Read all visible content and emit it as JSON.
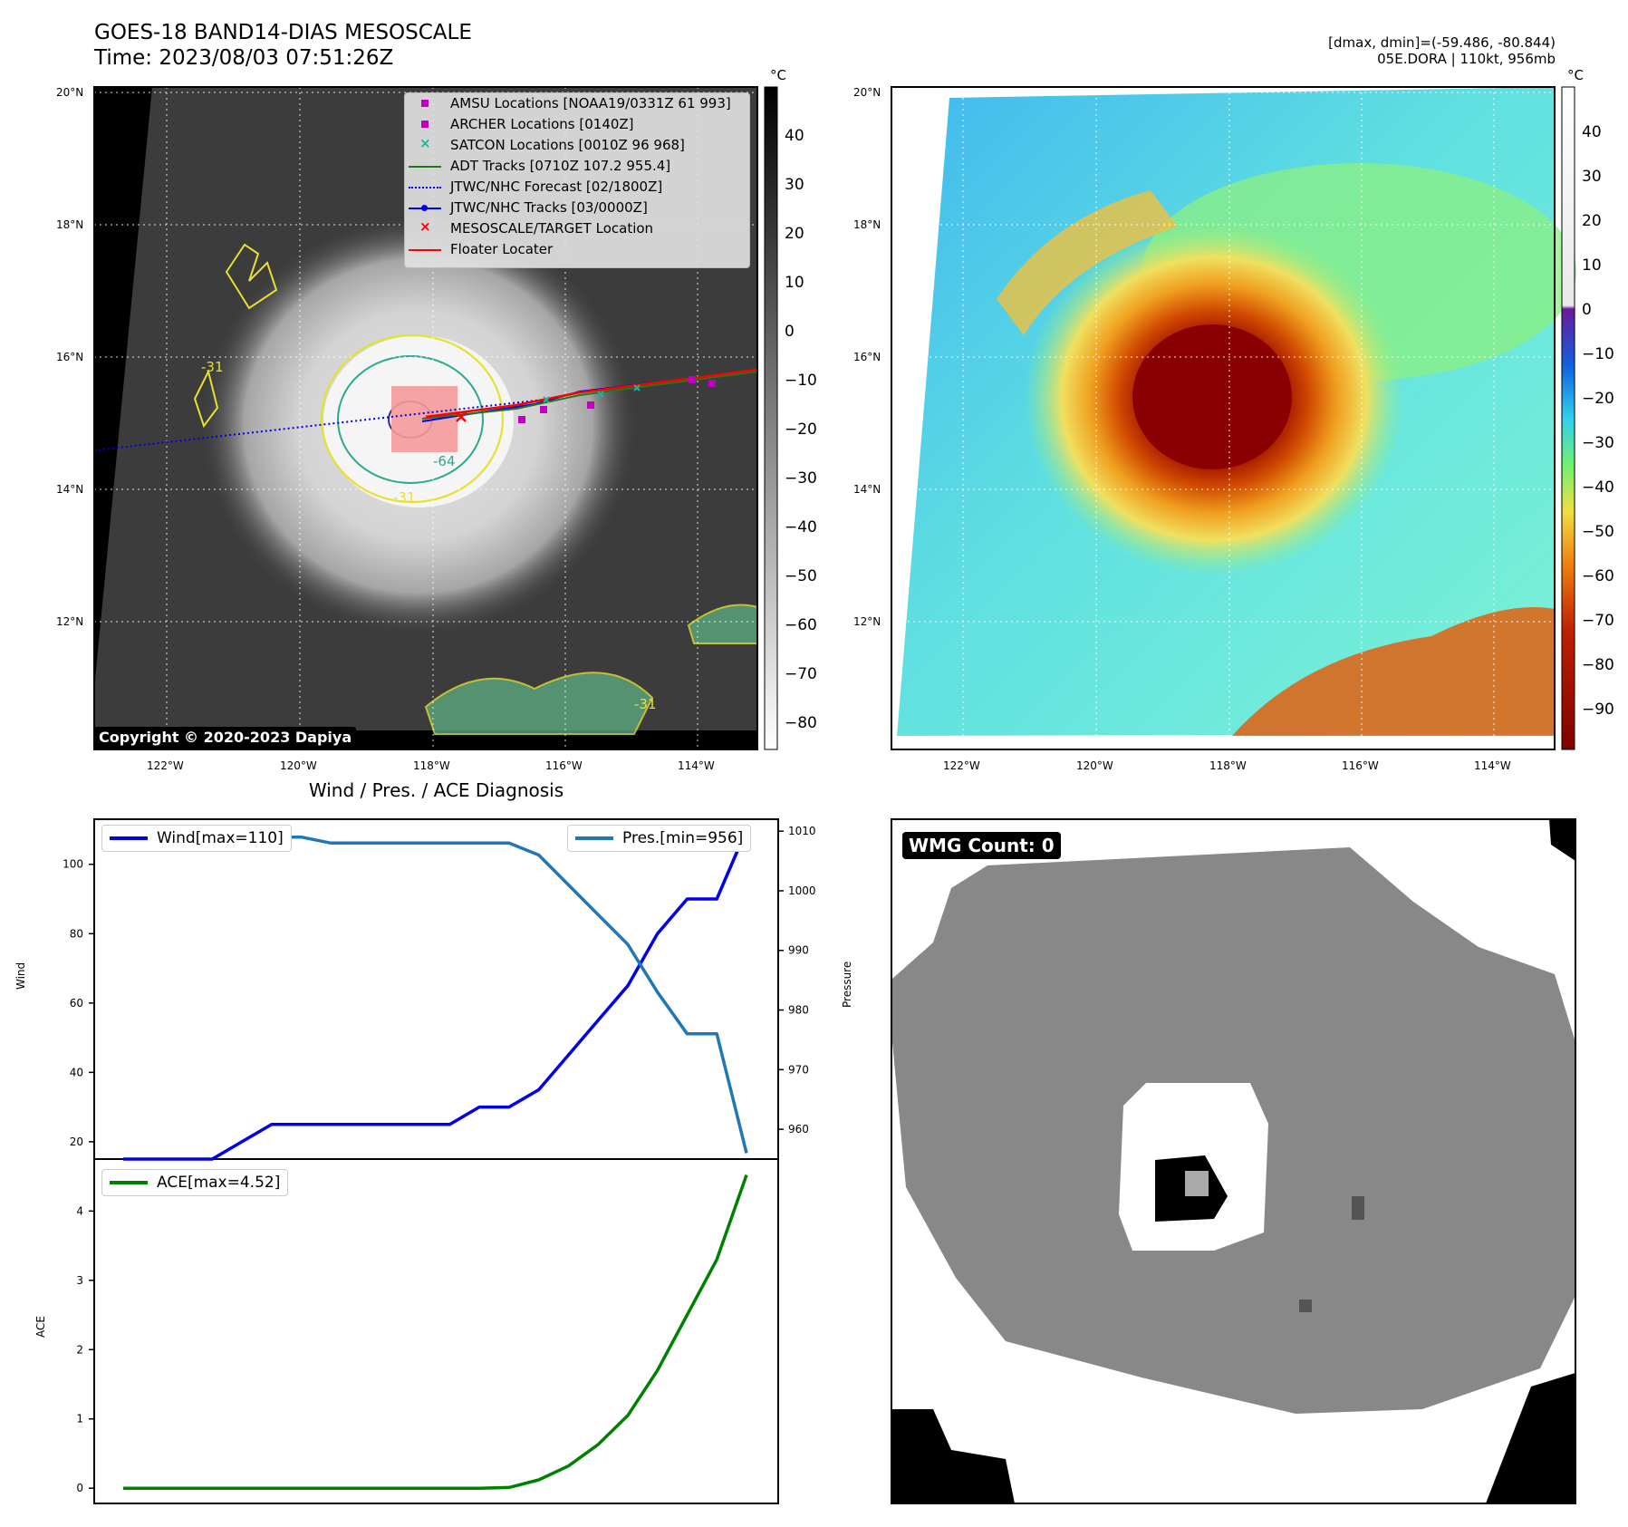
{
  "header": {
    "title_line1": "GOES-18 BAND14-DIAS MESOSCALE",
    "title_line2": "Time: 2023/08/03 07:51:26Z",
    "dmax_dmin": "[dmax, dmin]=(-59.486, -80.844)",
    "storm_info": "05E.DORA | 110kt, 956mb"
  },
  "map_axes": {
    "lat_labels": [
      "20°N",
      "18°N",
      "16°N",
      "14°N",
      "12°N"
    ],
    "lon_labels": [
      "122°W",
      "120°W",
      "118°W",
      "116°W",
      "114°W"
    ]
  },
  "colorbar_gray": {
    "unit": "°C",
    "ticks": [
      "40",
      "30",
      "20",
      "10",
      "0",
      "−10",
      "−20",
      "−30",
      "−40",
      "−50",
      "−60",
      "−70",
      "−80"
    ]
  },
  "colorbar_color": {
    "unit": "°C",
    "ticks": [
      "40",
      "30",
      "20",
      "10",
      "0",
      "−10",
      "−20",
      "−30",
      "−40",
      "−50",
      "−60",
      "−70",
      "−80",
      "−90"
    ]
  },
  "map_legend": [
    {
      "label": "AMSU Locations [NOAA19/0331Z 61 993]",
      "marker": "square",
      "color": "#c000c0"
    },
    {
      "label": "ARCHER Locations [0140Z]",
      "marker": "square",
      "color": "#c000c0"
    },
    {
      "label": "SATCON Locations [0010Z 96 968]",
      "marker": "x",
      "color": "#20b0a0"
    },
    {
      "label": "ADT Tracks [0710Z 107.2 955.4]",
      "marker": "line",
      "color": "#1a7a1a"
    },
    {
      "label": "JTWC/NHC Forecast [02/1800Z]",
      "marker": "dotted",
      "color": "#0000ee"
    },
    {
      "label": "JTWC/NHC Tracks [03/0000Z]",
      "marker": "line-dot",
      "color": "#0000ee"
    },
    {
      "label": "MESOSCALE/TARGET Location",
      "marker": "x",
      "color": "#ff0000"
    },
    {
      "label": "Floater Locater",
      "marker": "line",
      "color": "#ff0000"
    }
  ],
  "contour_labels": [
    "-31",
    "-64",
    "-31",
    "-31"
  ],
  "copyright": "Copyright © 2020-2023 Dapiya",
  "wmg_count": "WMG Count: 0",
  "chart_data": [
    {
      "type": "line",
      "title": "Wind / Pres. / ACE Diagnosis",
      "ylabel": "Wind",
      "ylabel_right": "Pressure",
      "ylim": [
        15,
        113
      ],
      "ylim_right": [
        955,
        1012
      ],
      "yticks": [
        20,
        40,
        60,
        80,
        100
      ],
      "yticks_right": [
        960,
        970,
        980,
        990,
        1000,
        1010
      ],
      "x": [
        0,
        1,
        2,
        3,
        4,
        5,
        6,
        7,
        8,
        9,
        10,
        11,
        12,
        13,
        14,
        15,
        16,
        17,
        18,
        19,
        20,
        21
      ],
      "series": [
        {
          "name": "Wind[max=110]",
          "color": "#0000ee",
          "axis": "left",
          "values": [
            15,
            15,
            15,
            15,
            20,
            25,
            25,
            25,
            25,
            25,
            25,
            25,
            30,
            30,
            35,
            45,
            55,
            65,
            80,
            90,
            90,
            110
          ]
        },
        {
          "name": "Pres.[min=956]",
          "color": "#1f77b4",
          "axis": "right",
          "values": [
            1010,
            1010,
            1010,
            1010,
            1009,
            1009,
            1009,
            1008,
            1008,
            1008,
            1008,
            1008,
            1008,
            1008,
            1006,
            1001,
            996,
            991,
            983,
            976,
            976,
            956
          ]
        }
      ]
    },
    {
      "type": "line",
      "ylabel": "ACE",
      "ylim": [
        -0.22,
        4.75
      ],
      "yticks": [
        0,
        1,
        2,
        3,
        4
      ],
      "x": [
        0,
        1,
        2,
        3,
        4,
        5,
        6,
        7,
        8,
        9,
        10,
        11,
        12,
        13,
        14,
        15,
        16,
        17,
        18,
        19,
        20,
        21
      ],
      "series": [
        {
          "name": "ACE[max=4.52]",
          "color": "#008000",
          "values": [
            0,
            0,
            0,
            0,
            0,
            0,
            0,
            0,
            0,
            0,
            0,
            0,
            0,
            0.01,
            0.12,
            0.32,
            0.63,
            1.05,
            1.7,
            2.5,
            3.3,
            4.52
          ]
        }
      ]
    }
  ]
}
